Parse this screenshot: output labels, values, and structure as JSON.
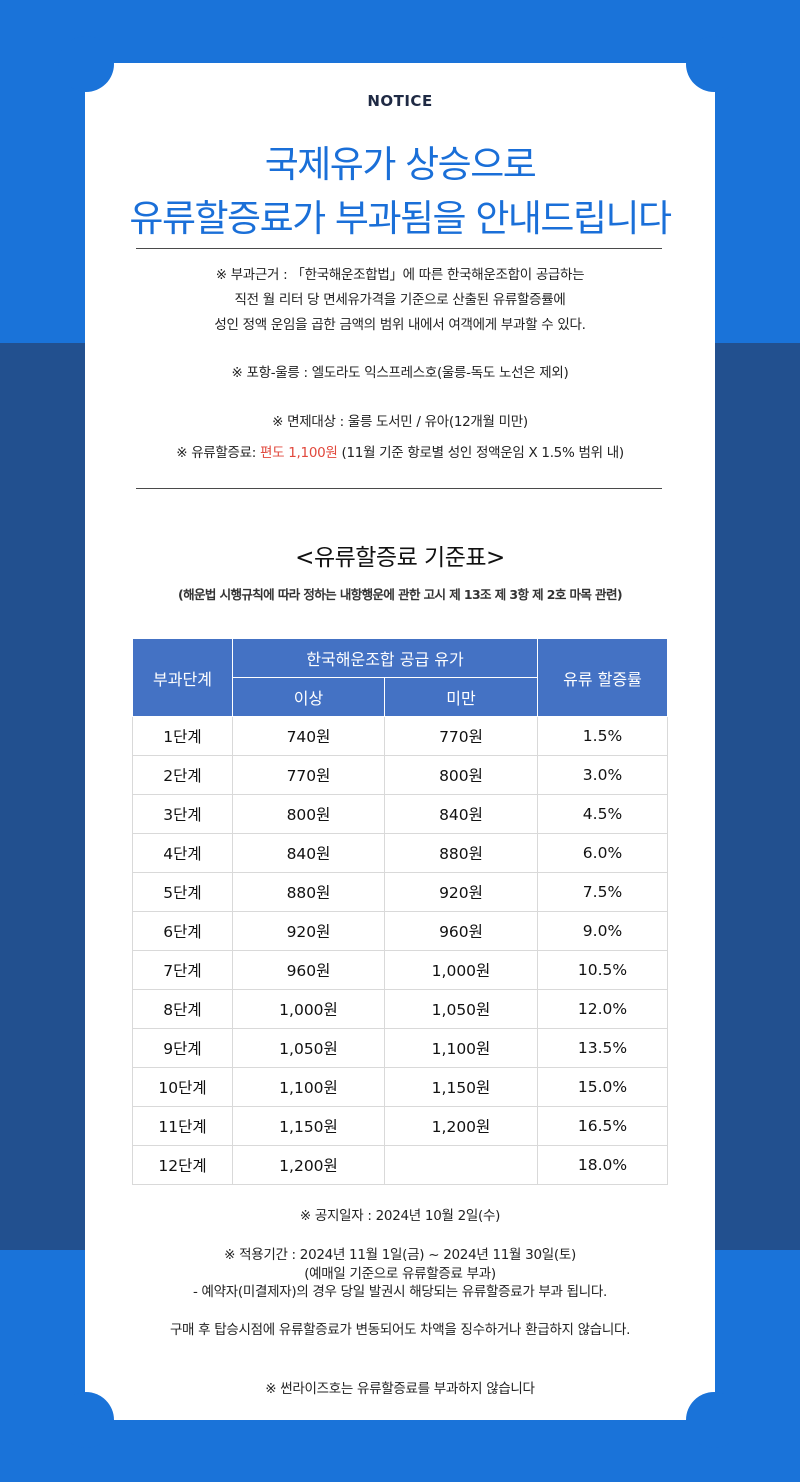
{
  "notice_label": "NOTICE",
  "headline": {
    "line1": "국제유가 상승으로",
    "line2": "유류할증료가 부과됨을 안내드립니다"
  },
  "basis": {
    "line1": "※ 부과근거 : 「한국해운조합법」에 따른 한국해운조합이 공급하는",
    "line2": "직전 월 리터 당 면세유가격을 기준으로 산출된 유류할증률에",
    "line3": "성인 정액 운임을 곱한 금액의 범위 내에서 여객에게 부과할 수 있다."
  },
  "route": "※ 포항-울릉 : 엘도라도 익스프레스호(울릉-독도 노선은 제외)",
  "exempt": "※ 면제대상 : 울릉 도서민 / 유아(12개월 미만)",
  "surcharge": {
    "prefix": "※ 유류할증료: ",
    "highlight": "편도 1,100원",
    "suffix": " (11월 기준 항로별 성인 정액운임 X 1.5% 범위 내)",
    "highlight_color": "#e1483c"
  },
  "table_title": "<유류할증료 기준표>",
  "table_reference": "(해운법 시행규칙에 따라 정하는 내항행운에 관한 고시 제 13조 제 3항 제 2호 마목 관련)",
  "table": {
    "headers": {
      "stage": "부과단계",
      "supply_price": "한국해운조합 공급 유가",
      "min": "이상",
      "max": "미만",
      "rate": "유류 할증률"
    },
    "rows": [
      {
        "stage": "1단계",
        "min": "740원",
        "max": "770원",
        "rate": "1.5%"
      },
      {
        "stage": "2단계",
        "min": "770원",
        "max": "800원",
        "rate": "3.0%"
      },
      {
        "stage": "3단계",
        "min": "800원",
        "max": "840원",
        "rate": "4.5%"
      },
      {
        "stage": "4단계",
        "min": "840원",
        "max": "880원",
        "rate": "6.0%"
      },
      {
        "stage": "5단계",
        "min": "880원",
        "max": "920원",
        "rate": "7.5%"
      },
      {
        "stage": "6단계",
        "min": "920원",
        "max": "960원",
        "rate": "9.0%"
      },
      {
        "stage": "7단계",
        "min": "960원",
        "max": "1,000원",
        "rate": "10.5%"
      },
      {
        "stage": "8단계",
        "min": "1,000원",
        "max": "1,050원",
        "rate": "12.0%"
      },
      {
        "stage": "9단계",
        "min": "1,050원",
        "max": "1,100원",
        "rate": "13.5%"
      },
      {
        "stage": "10단계",
        "min": "1,100원",
        "max": "1,150원",
        "rate": "15.0%"
      },
      {
        "stage": "11단계",
        "min": "1,150원",
        "max": "1,200원",
        "rate": "16.5%"
      },
      {
        "stage": "12단계",
        "min": "1,200원",
        "max": "",
        "rate": "18.0%"
      }
    ]
  },
  "notice_date": "※ 공지일자 : 2024년 10월 2일(수)",
  "period": {
    "line1": "※ 적용기간 : 2024년 11월 1일(금) ~ 2024년 11월 30일(토)",
    "line2": "(예매일 기준으로 유류할증료 부과)",
    "line3": "- 예약자(미결제자)의 경우 당일 발권시 해당되는 유류할증료가 부과 됩니다."
  },
  "refund_notice": "구매 후 탑승시점에 유류할증료가 변동되어도 차액을 징수하거나 환급하지 않습니다.",
  "sunrise_notice": "※ 썬라이즈호는 유류할증료를 부과하지 않습니다",
  "colors": {
    "background_blue": "#1a73d9",
    "band_navy": "#22508f",
    "headline_blue": "#1a6fd8",
    "table_header": "#4472c4"
  }
}
